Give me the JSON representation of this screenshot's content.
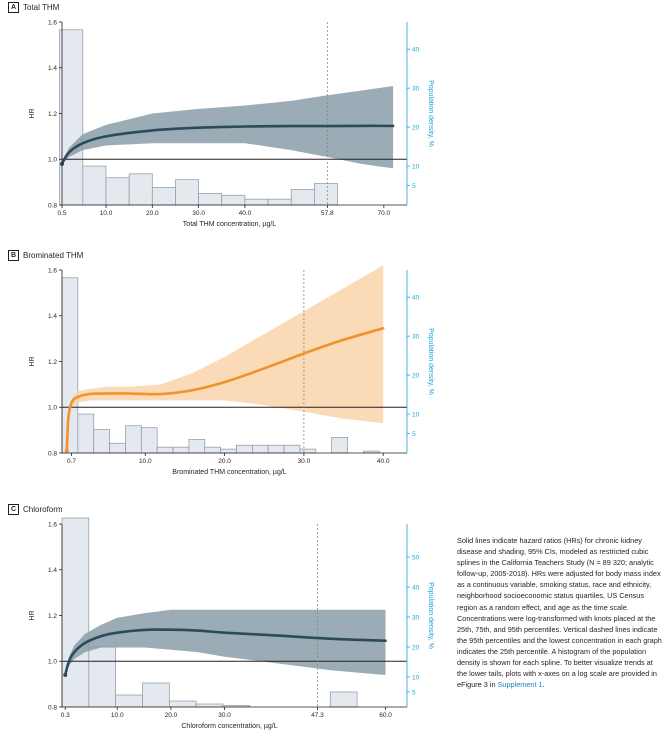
{
  "colors": {
    "hist_fill": "#e3e9ee",
    "hist_stroke": "#8a96a3",
    "axis": "#231f20",
    "density_axis": "#1ca3d8",
    "ref_line": "#231f20",
    "dashed": "#8a8a8a"
  },
  "caption": {
    "text": "Solid lines indicate hazard ratios (HRs) for chronic kidney disease and shading, 95% CIs, modeled as restricted cubic splines in the California Teachers Study (N = 89 320; analytic follow-up, 2005-2018). HRs were adjusted for body mass index as a continuous variable, smoking status, race and ethnicity, neighborhood socioeconomic status quartiles, US Census region as a random effect, and age as the time scale. Concentrations were log-transformed with knots placed at the 25th, 75th, and 95th percentiles. Vertical dashed lines indicate the 95th percentiles and the lowest concentration in each graph indicates the 25th percentile. A histogram of the population density is shown for each spline. To better visualize trends at the lower tails, plots with x-axes on a log scale are provided in eFigure 3 in ",
    "link": "Supplement 1",
    "end": "."
  },
  "chart_data": [
    {
      "type": "line",
      "letter": "A",
      "title": "Total THM",
      "xlabel": "Total THM concentration, µg/L",
      "ylabel": "HR",
      "y2label": "Population density, %",
      "xlim": [
        0.5,
        75
      ],
      "xticks": [
        0.5,
        10.0,
        20.0,
        30.0,
        40.0,
        57.8,
        70.0
      ],
      "xtick_labels": [
        "0.5",
        "10.0",
        "20.0",
        "30.0",
        "40.0",
        "57.8",
        "70.0"
      ],
      "ylim": [
        0.8,
        1.6
      ],
      "yticks": [
        0.8,
        1.0,
        1.2,
        1.4,
        1.6
      ],
      "ytick_labels": [
        "0.8",
        "1.0",
        "1.2",
        "1.4",
        "1.6"
      ],
      "y2lim": [
        0,
        47
      ],
      "y2ticks": [
        5,
        10,
        20,
        30,
        40
      ],
      "y2tick_labels": [
        "5",
        "10",
        "20",
        "30",
        "40"
      ],
      "reference_hr": 1.0,
      "dashed_x": 57.8,
      "colors": {
        "line": "#2b4b5b",
        "band": "#8b9ea9"
      },
      "histogram": [
        {
          "x0": 0,
          "x1": 5,
          "density": 45
        },
        {
          "x0": 5,
          "x1": 10,
          "density": 10
        },
        {
          "x0": 10,
          "x1": 15,
          "density": 7
        },
        {
          "x0": 15,
          "x1": 20,
          "density": 8
        },
        {
          "x0": 20,
          "x1": 25,
          "density": 4.5
        },
        {
          "x0": 25,
          "x1": 30,
          "density": 6.5
        },
        {
          "x0": 30,
          "x1": 35,
          "density": 3
        },
        {
          "x0": 35,
          "x1": 40,
          "density": 2.5
        },
        {
          "x0": 40,
          "x1": 45,
          "density": 1.5
        },
        {
          "x0": 45,
          "x1": 50,
          "density": 1.5
        },
        {
          "x0": 50,
          "x1": 55,
          "density": 4
        },
        {
          "x0": 55,
          "x1": 60,
          "density": 5.5
        }
      ],
      "spline": {
        "x": [
          0.5,
          2,
          5,
          10,
          20,
          30,
          40,
          50,
          57.8,
          65,
          72
        ],
        "hr": [
          0.98,
          1.03,
          1.07,
          1.1,
          1.126,
          1.138,
          1.143,
          1.145,
          1.145,
          1.146,
          1.146
        ],
        "lower": [
          0.98,
          1.01,
          1.04,
          1.06,
          1.07,
          1.07,
          1.07,
          1.04,
          1.01,
          0.98,
          0.96
        ],
        "upper": [
          0.98,
          1.05,
          1.11,
          1.15,
          1.2,
          1.22,
          1.235,
          1.255,
          1.28,
          1.3,
          1.32
        ]
      }
    },
    {
      "type": "line",
      "letter": "B",
      "title": "Brominated THM",
      "xlabel": "Brominated THM concentration, µg/L",
      "ylabel": "HR",
      "y2label": "Population density, %",
      "xlim": [
        -0.5,
        43
      ],
      "xticks": [
        0.7,
        10.0,
        20.0,
        30.0,
        40.0
      ],
      "xtick_labels": [
        "0.7",
        "10.0",
        "20.0",
        "30.0",
        "40.0"
      ],
      "ylim": [
        0.8,
        1.6
      ],
      "yticks": [
        0.8,
        1.0,
        1.2,
        1.4,
        1.6
      ],
      "ytick_labels": [
        "0.8",
        "1.0",
        "1.2",
        "1.4",
        "1.6"
      ],
      "y2lim": [
        0,
        47
      ],
      "y2ticks": [
        5,
        10,
        20,
        30,
        40
      ],
      "y2tick_labels": [
        "5",
        "10",
        "20",
        "30",
        "40"
      ],
      "reference_hr": 1.0,
      "dashed_x": 30.0,
      "colors": {
        "line": "#f0922d",
        "band": "#fad3aa"
      },
      "histogram": [
        {
          "x0": -0.5,
          "x1": 1.5,
          "density": 45
        },
        {
          "x0": 1.5,
          "x1": 3.5,
          "density": 10
        },
        {
          "x0": 3.5,
          "x1": 5.5,
          "density": 6
        },
        {
          "x0": 5.5,
          "x1": 7.5,
          "density": 2.5
        },
        {
          "x0": 7.5,
          "x1": 9.5,
          "density": 7
        },
        {
          "x0": 9.5,
          "x1": 11.5,
          "density": 6.5
        },
        {
          "x0": 11.5,
          "x1": 13.5,
          "density": 1.5
        },
        {
          "x0": 13.5,
          "x1": 15.5,
          "density": 1.5
        },
        {
          "x0": 15.5,
          "x1": 17.5,
          "density": 3.5
        },
        {
          "x0": 17.5,
          "x1": 19.5,
          "density": 1.5
        },
        {
          "x0": 19.5,
          "x1": 21.5,
          "density": 1
        },
        {
          "x0": 21.5,
          "x1": 23.5,
          "density": 2
        },
        {
          "x0": 23.5,
          "x1": 25.5,
          "density": 2
        },
        {
          "x0": 25.5,
          "x1": 27.5,
          "density": 2
        },
        {
          "x0": 27.5,
          "x1": 29.5,
          "density": 2
        },
        {
          "x0": 29.5,
          "x1": 31.5,
          "density": 1
        },
        {
          "x0": 33.5,
          "x1": 35.5,
          "density": 4
        },
        {
          "x0": 37.5,
          "x1": 39.5,
          "density": 0.5
        }
      ],
      "spline": {
        "x": [
          0.1,
          0.3,
          0.7,
          1.5,
          3,
          5,
          8,
          12,
          16,
          20,
          25,
          30,
          35,
          40
        ],
        "hr": [
          0.81,
          0.95,
          1.02,
          1.045,
          1.058,
          1.06,
          1.06,
          1.058,
          1.075,
          1.11,
          1.17,
          1.235,
          1.295,
          1.345
        ],
        "lower": [
          0.81,
          0.94,
          1.0,
          1.02,
          1.03,
          1.03,
          1.03,
          1.03,
          1.03,
          1.03,
          1.01,
          0.98,
          0.95,
          0.93
        ],
        "upper": [
          0.81,
          0.96,
          1.04,
          1.07,
          1.08,
          1.09,
          1.09,
          1.1,
          1.15,
          1.22,
          1.32,
          1.42,
          1.52,
          1.62
        ]
      }
    },
    {
      "type": "line",
      "letter": "C",
      "title": "Chloroform",
      "xlabel": "Chloroform concentration, µg/L",
      "ylabel": "HR",
      "y2label": "Population density, %",
      "xlim": [
        -0.3,
        64
      ],
      "xticks": [
        0.3,
        10.0,
        20.0,
        30.0,
        47.3,
        60.0
      ],
      "xtick_labels": [
        "0.3",
        "10.0",
        "20.0",
        "30.0",
        "47.3",
        "60.0"
      ],
      "ylim": [
        0.8,
        1.6
      ],
      "yticks": [
        0.8,
        1.0,
        1.2,
        1.4,
        1.6
      ],
      "ytick_labels": [
        "0.8",
        "1.0",
        "1.2",
        "1.4",
        "1.6"
      ],
      "y2lim": [
        0,
        61
      ],
      "y2ticks": [
        5,
        10,
        20,
        30,
        40,
        50
      ],
      "y2tick_labels": [
        "5",
        "10",
        "20",
        "30",
        "40",
        "50"
      ],
      "reference_hr": 1.0,
      "dashed_x": 47.3,
      "colors": {
        "line": "#2b4b5b",
        "band": "#8b9ea9"
      },
      "histogram": [
        {
          "x0": -0.3,
          "x1": 4.7,
          "density": 63
        },
        {
          "x0": 4.7,
          "x1": 9.7,
          "density": 20
        },
        {
          "x0": 9.7,
          "x1": 14.7,
          "density": 4
        },
        {
          "x0": 14.7,
          "x1": 19.7,
          "density": 8
        },
        {
          "x0": 19.7,
          "x1": 24.7,
          "density": 2
        },
        {
          "x0": 24.7,
          "x1": 29.7,
          "density": 1
        },
        {
          "x0": 29.7,
          "x1": 34.7,
          "density": 0.5
        },
        {
          "x0": 49.7,
          "x1": 54.7,
          "density": 5
        }
      ],
      "spline": {
        "x": [
          0.3,
          1,
          2,
          4,
          7,
          10,
          15,
          20,
          25,
          30,
          40,
          50,
          60
        ],
        "hr": [
          0.94,
          1.0,
          1.04,
          1.08,
          1.11,
          1.125,
          1.137,
          1.138,
          1.134,
          1.125,
          1.112,
          1.098,
          1.09
        ],
        "lower": [
          0.94,
          0.98,
          1.01,
          1.04,
          1.06,
          1.06,
          1.06,
          1.05,
          1.04,
          1.02,
          0.99,
          0.96,
          0.94
        ],
        "upper": [
          0.94,
          1.02,
          1.07,
          1.12,
          1.16,
          1.19,
          1.21,
          1.225,
          1.225,
          1.225,
          1.225,
          1.225,
          1.225
        ]
      }
    }
  ]
}
